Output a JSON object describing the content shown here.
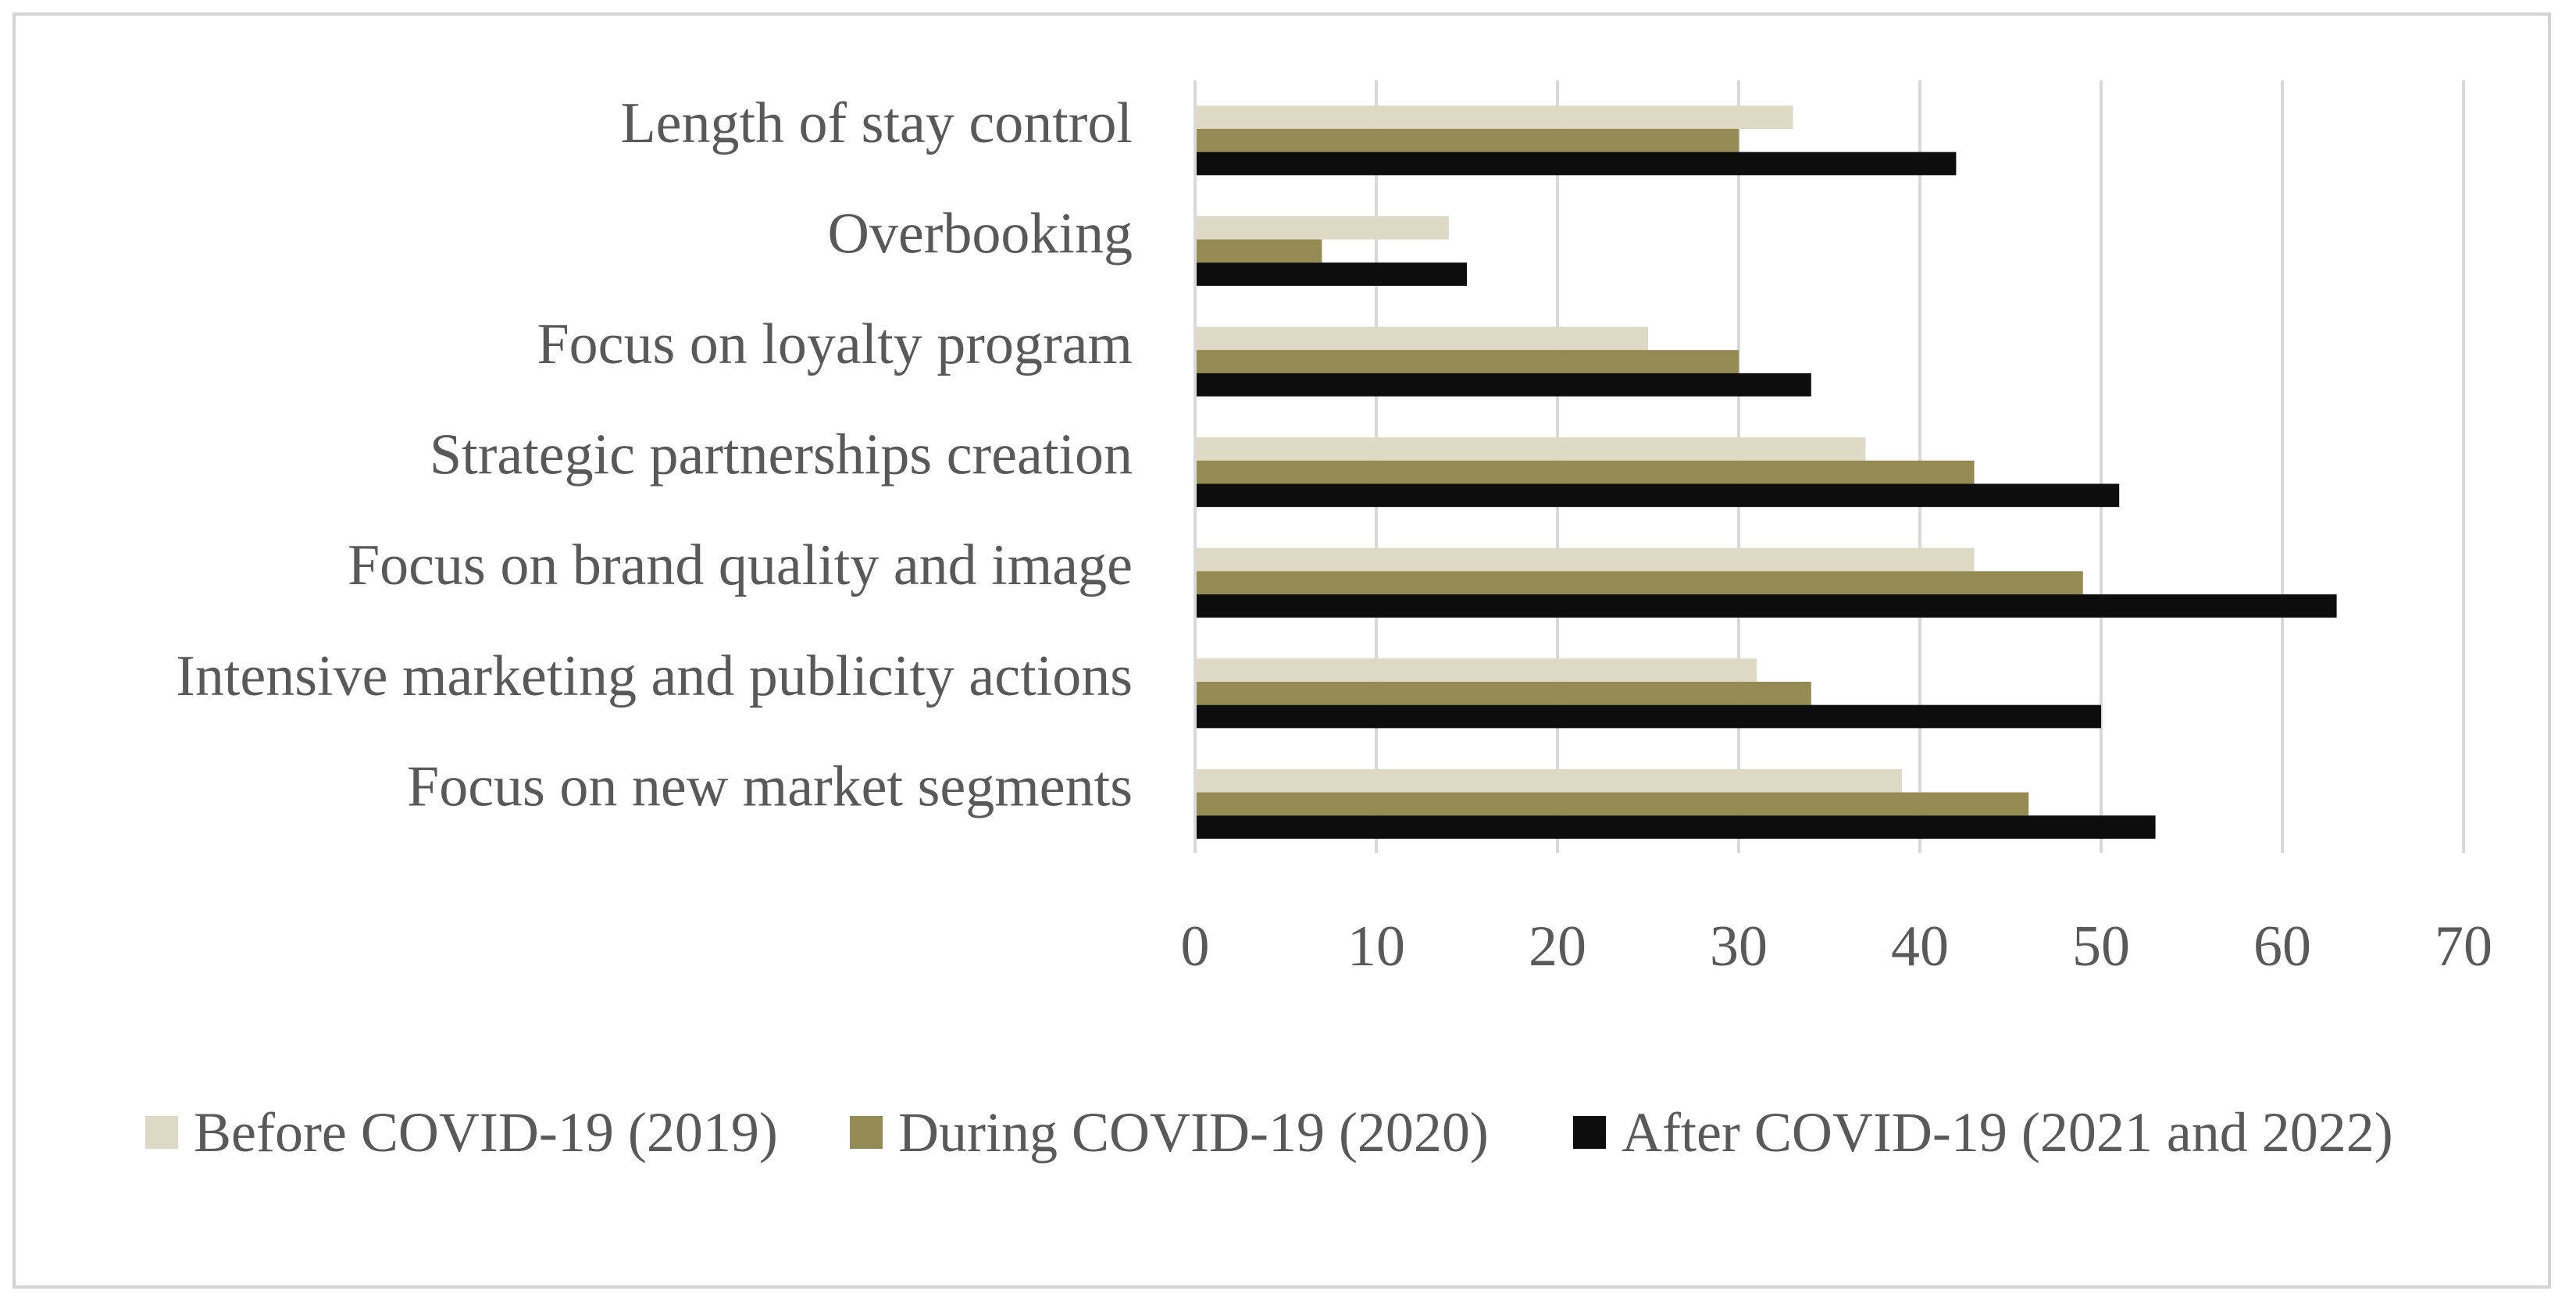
{
  "chart_data": {
    "type": "bar",
    "orientation": "horizontal",
    "title": "",
    "xlabel": "",
    "ylabel": "",
    "xlim": [
      0,
      70
    ],
    "xticks": [
      0,
      10,
      20,
      30,
      40,
      50,
      60,
      70
    ],
    "grid": true,
    "legend_position": "bottom",
    "categories": [
      "Length of stay control",
      "Overbooking",
      "Focus on loyalty program",
      "Strategic partnerships creation",
      "Focus on brand quality and image",
      "Intensive marketing and publicity actions",
      "Focus on new market segments"
    ],
    "series": [
      {
        "name": "Before COVID-19 (2019)",
        "color": "#ddd9c4",
        "values": [
          33,
          14,
          25,
          37,
          43,
          31,
          39
        ]
      },
      {
        "name": "During COVID-19 (2020)",
        "color": "#948a54",
        "values": [
          30,
          7,
          30,
          43,
          49,
          34,
          46
        ]
      },
      {
        "name": "After COVID-19 (2021 and 2022)",
        "color": "#0d0d0d",
        "values": [
          42,
          15,
          34,
          51,
          63,
          50,
          53
        ]
      }
    ]
  }
}
